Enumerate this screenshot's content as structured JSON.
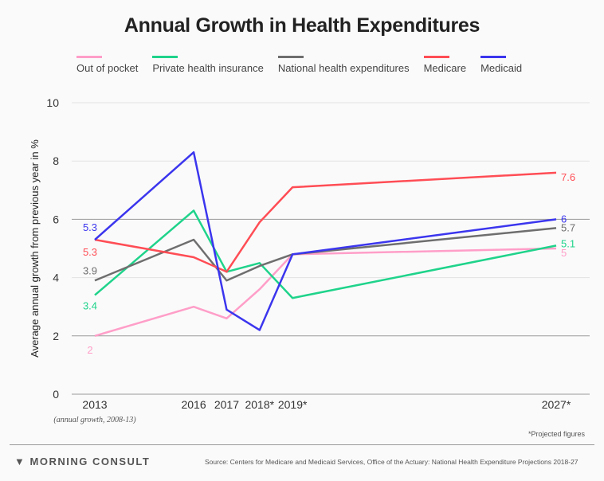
{
  "chart_data": {
    "type": "line",
    "title": "Annual Growth in Health Expenditures",
    "ylabel": "Average annual growth from previous year in %",
    "xlabel": "",
    "x": [
      2013,
      2016,
      2017,
      2018,
      2019,
      2027
    ],
    "x_tick_labels": [
      "2013",
      "2016",
      "2017",
      "2018*",
      "2019*",
      "2027*"
    ],
    "x_note": "(annual growth, 2008-13)",
    "ylim": [
      0,
      10
    ],
    "y_ticks": [
      0,
      2,
      4,
      6,
      8,
      10
    ],
    "grid": true,
    "legend_position": "top",
    "series": [
      {
        "name": "Out of pocket",
        "color": "#ff9ec8",
        "values": [
          2.0,
          3.0,
          2.6,
          3.6,
          4.8,
          5.0
        ],
        "start_label": "2",
        "end_label": "5"
      },
      {
        "name": "Private health insurance",
        "color": "#1fd38b",
        "values": [
          3.4,
          6.3,
          4.2,
          4.5,
          3.3,
          5.1
        ],
        "start_label": "3.4",
        "end_label": "5.1"
      },
      {
        "name": "National health expenditures",
        "color": "#6e6e6e",
        "values": [
          3.9,
          5.3,
          3.9,
          4.4,
          4.8,
          5.7
        ],
        "start_label": "3.9",
        "end_label": "5.7"
      },
      {
        "name": "Medicare",
        "color": "#ff4d55",
        "values": [
          5.3,
          4.7,
          4.2,
          5.9,
          7.1,
          7.6
        ],
        "start_label": "5.3",
        "end_label": "7.6"
      },
      {
        "name": "Medicaid",
        "color": "#3b35ee",
        "values": [
          5.3,
          8.3,
          2.9,
          2.2,
          4.8,
          6.0
        ],
        "start_label": "5.3",
        "end_label": "6"
      }
    ]
  },
  "footer": {
    "projected_note": "*Projected figures",
    "brand": "MORNING CONSULT",
    "source": "Source: Centers for Medicare and Medicaid Services, Office of the Actuary: National Health Expenditure Projections 2018-27"
  }
}
